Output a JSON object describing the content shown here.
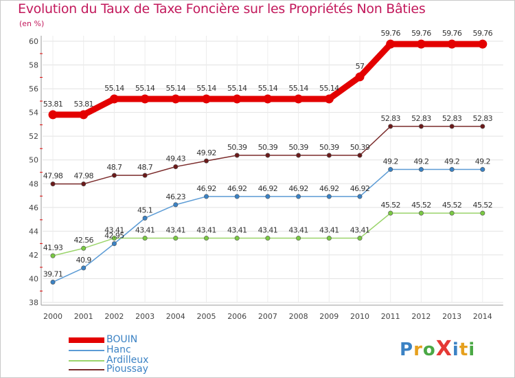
{
  "title": "Evolution du Taux de Taxe Foncière sur les Propriétés Non Bâties",
  "subtitle": "(en %)",
  "logo": {
    "text": "ProXiti",
    "letters": [
      "P",
      "r",
      "o",
      "X",
      "i",
      "t",
      "i"
    ],
    "colors": [
      "#3b82c4",
      "#e6a01e",
      "#4aa845",
      "#e53935",
      "#3b82c4",
      "#e6a01e",
      "#4aa845"
    ]
  },
  "chart_data": {
    "type": "line",
    "title": "Evolution du Taux de Taxe Foncière sur les Propriétés Non Bâties",
    "ylabel": "(en %)",
    "xlabel": "",
    "ylim": [
      38,
      60
    ],
    "yticks": [
      38,
      40,
      42,
      44,
      46,
      48,
      50,
      52,
      54,
      56,
      58,
      60
    ],
    "grid": true,
    "categories": [
      "2000",
      "2001",
      "2002",
      "2003",
      "2004",
      "2005",
      "2006",
      "2007",
      "2008",
      "2009",
      "2010",
      "2011",
      "2012",
      "2013",
      "2014"
    ],
    "series": [
      {
        "name": "BOUIN",
        "color": "#e30000",
        "marker": "#e30000",
        "width": 9,
        "values": [
          53.81,
          53.81,
          55.14,
          55.14,
          55.14,
          55.14,
          55.14,
          55.14,
          55.14,
          55.14,
          57,
          59.76,
          59.76,
          59.76,
          59.76
        ],
        "labels": [
          "53.81",
          "53.81",
          "55.14",
          "55.14",
          "55.14",
          "55.14",
          "55.14",
          "55.14",
          "55.14",
          "55.14",
          "57",
          "59.76",
          "59.76",
          "59.76",
          "59.76"
        ]
      },
      {
        "name": "Hanc",
        "color": "#5b9bd5",
        "marker": "#3b82c4",
        "width": 1.5,
        "values": [
          39.71,
          40.9,
          42.95,
          45.1,
          46.23,
          46.92,
          46.92,
          46.92,
          46.92,
          46.92,
          46.92,
          49.2,
          49.2,
          49.2,
          49.2
        ],
        "labels": [
          "39.71",
          "40.9",
          "42.95",
          "45.1",
          "46.23",
          "46.92",
          "46.92",
          "46.92",
          "46.92",
          "46.92",
          "46.92",
          "49.2",
          "49.2",
          "49.2",
          "49.2"
        ]
      },
      {
        "name": "Ardilleux",
        "color": "#9ad46a",
        "marker": "#7ac943",
        "width": 1.5,
        "values": [
          41.93,
          42.56,
          43.41,
          43.41,
          43.41,
          43.41,
          43.41,
          43.41,
          43.41,
          43.41,
          43.41,
          45.52,
          45.52,
          45.52,
          45.52
        ],
        "labels": [
          "41.93",
          "42.56",
          "43.41",
          "43.41",
          "43.41",
          "43.41",
          "43.41",
          "43.41",
          "43.41",
          "43.41",
          "43.41",
          "45.52",
          "45.52",
          "45.52",
          "45.52"
        ]
      },
      {
        "name": "Pioussay",
        "color": "#7a2a2a",
        "marker": "#6b1a1a",
        "width": 1.5,
        "values": [
          47.98,
          47.98,
          48.7,
          48.7,
          49.43,
          49.92,
          50.39,
          50.39,
          50.39,
          50.39,
          50.39,
          52.83,
          52.83,
          52.83,
          52.83
        ],
        "labels": [
          "47.98",
          "47.98",
          "48.7",
          "48.7",
          "49.43",
          "49.92",
          "50.39",
          "50.39",
          "50.39",
          "50.39",
          "50.39",
          "52.83",
          "52.83",
          "52.83",
          "52.83"
        ]
      }
    ],
    "legend_position": "bottom-left"
  }
}
